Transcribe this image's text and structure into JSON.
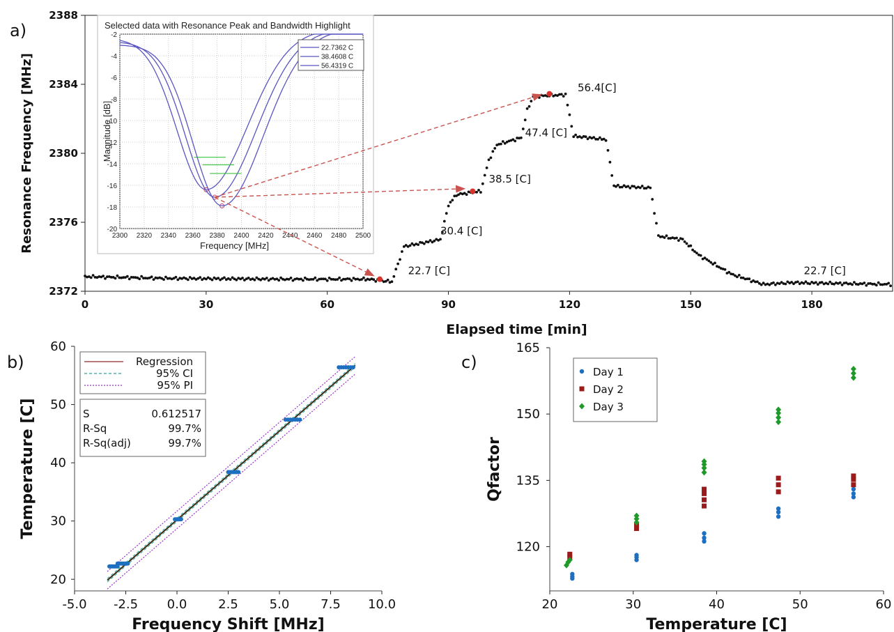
{
  "panels": {
    "a": "a)",
    "b": "b)",
    "c": "c)"
  },
  "chart_data": [
    {
      "id": "a",
      "type": "scatter",
      "xlabel": "Elapsed time [min]",
      "ylabel": "Resonance Frequency [MHz]",
      "xlim": [
        0,
        200
      ],
      "ylim": [
        2372,
        2388
      ],
      "xticks": [
        0,
        30,
        60,
        90,
        120,
        150,
        180
      ],
      "yticks": [
        2372,
        2376,
        2380,
        2384,
        2388
      ],
      "series_profile": [
        [
          0,
          2372.85
        ],
        [
          20,
          2372.75
        ],
        [
          50,
          2372.7
        ],
        [
          70,
          2372.7
        ],
        [
          76,
          2372.55
        ],
        [
          79,
          2374.6
        ],
        [
          88,
          2375.0
        ],
        [
          90,
          2377.0
        ],
        [
          92,
          2377.6
        ],
        [
          98,
          2377.8
        ],
        [
          100,
          2379.6
        ],
        [
          102,
          2380.5
        ],
        [
          108,
          2380.9
        ],
        [
          109.5,
          2382.5
        ],
        [
          111,
          2383.3
        ],
        [
          119,
          2383.4
        ],
        [
          121,
          2381.0
        ],
        [
          129,
          2380.8
        ],
        [
          131,
          2378.1
        ],
        [
          140,
          2378.0
        ],
        [
          142,
          2375.2
        ],
        [
          148,
          2375.0
        ],
        [
          152,
          2374.1
        ],
        [
          160,
          2373.0
        ],
        [
          168,
          2372.4
        ],
        [
          175,
          2372.5
        ],
        [
          200,
          2372.4
        ]
      ],
      "highlights": [
        [
          73,
          2372.7
        ],
        [
          96,
          2377.8
        ],
        [
          115,
          2383.45
        ]
      ],
      "annotations": [
        {
          "text": "22.7 [C]",
          "x": 80,
          "y": 2373.0
        },
        {
          "text": "30.4 [C]",
          "x": 88,
          "y": 2375.3
        },
        {
          "text": "38.5 [C]",
          "x": 100,
          "y": 2378.3
        },
        {
          "text": "47.4 [C]",
          "x": 109,
          "y": 2381.0
        },
        {
          "text": "56.4[C]",
          "x": 122,
          "y": 2383.6
        },
        {
          "text": "22.7 [C]",
          "x": 178,
          "y": 2373.0
        }
      ],
      "inset": {
        "title": "Selected data with Resonance Peak and Bandwidth Highlight",
        "xlabel": "Frequency [MHz]",
        "ylabel": "Magnitude [dB]",
        "xlim": [
          2300,
          2500
        ],
        "ylim": [
          -20,
          -2
        ],
        "xticks": [
          2300,
          2320,
          2340,
          2360,
          2380,
          2400,
          2420,
          2440,
          2460,
          2480,
          2500
        ],
        "yticks": [
          -2,
          -4,
          -6,
          -8,
          -10,
          -12,
          -14,
          -16,
          -18,
          -20
        ],
        "series": [
          {
            "name": "22.7362 C",
            "center": 2371,
            "depth": -16.4,
            "color": "#5a55c0"
          },
          {
            "name": "38.4608 C",
            "center": 2378,
            "depth": -17.1,
            "color": "#5a55c0"
          },
          {
            "name": "56.4319 C",
            "center": 2384,
            "depth": -17.9,
            "color": "#5a55c0"
          }
        ]
      }
    },
    {
      "id": "b",
      "type": "scatter",
      "xlabel": "Frequency Shift [MHz]",
      "ylabel": "Temperature [C]",
      "xlim": [
        -5,
        10
      ],
      "ylim": [
        18,
        60
      ],
      "xticks": [
        -5.0,
        -2.5,
        0.0,
        2.5,
        5.0,
        7.5,
        10.0
      ],
      "yticks": [
        20,
        30,
        40,
        50,
        60
      ],
      "regression": {
        "slope": 3.05,
        "intercept": 30.2
      },
      "clusters": [
        {
          "x0": -3.3,
          "x1": -2.9,
          "y": 22.2
        },
        {
          "x0": -2.9,
          "x1": -2.4,
          "y": 22.7
        },
        {
          "x0": -0.1,
          "x1": 0.2,
          "y": 30.3
        },
        {
          "x0": 2.5,
          "x1": 3.0,
          "y": 38.4
        },
        {
          "x0": 5.3,
          "x1": 6.0,
          "y": 47.4
        },
        {
          "x0": 7.9,
          "x1": 8.6,
          "y": 56.4
        }
      ],
      "legend": {
        "items": [
          "Regression",
          "95% CI",
          "95% PI"
        ],
        "stats": [
          {
            "label": "S",
            "value": "0.612517"
          },
          {
            "label": "R-Sq",
            "value": "99.7%"
          },
          {
            "label": "R-Sq(adj)",
            "value": "99.7%"
          }
        ]
      },
      "colors": {
        "regression": "#8b2a2a",
        "ci": "#2aa2a0",
        "pi": "#9b2fd0",
        "points": "#1f6fc0"
      }
    },
    {
      "id": "c",
      "type": "scatter",
      "xlabel": "Temperature [C]",
      "ylabel": "Qfactor",
      "xlim": [
        20,
        60
      ],
      "ylim": [
        110,
        165
      ],
      "xticks": [
        20,
        30,
        40,
        50,
        60
      ],
      "yticks": [
        120,
        135,
        150,
        165
      ],
      "series": [
        {
          "name": "Day 1",
          "color": "#1f6fc0",
          "marker": "circle",
          "points": [
            [
              22.7,
              113.8
            ],
            [
              22.7,
              113.2
            ],
            [
              22.7,
              112.8
            ],
            [
              30.4,
              117.0
            ],
            [
              30.4,
              117.6
            ],
            [
              30.4,
              118.1
            ],
            [
              38.5,
              121.2
            ],
            [
              38.5,
              122.0
            ],
            [
              38.5,
              123.0
            ],
            [
              47.4,
              126.8
            ],
            [
              47.4,
              127.8
            ],
            [
              47.4,
              128.6
            ],
            [
              56.4,
              131.2
            ],
            [
              56.4,
              132.0
            ],
            [
              56.4,
              133.0
            ]
          ]
        },
        {
          "name": "Day 2",
          "color": "#9b1a1a",
          "marker": "square",
          "points": [
            [
              22.4,
              117.6
            ],
            [
              22.4,
              118.3
            ],
            [
              30.4,
              124.1
            ],
            [
              30.4,
              125.0
            ],
            [
              38.5,
              129.2
            ],
            [
              38.5,
              130.6
            ],
            [
              38.5,
              132.0
            ],
            [
              38.5,
              133.0
            ],
            [
              47.4,
              132.4
            ],
            [
              47.4,
              134.0
            ],
            [
              47.4,
              135.5
            ],
            [
              56.4,
              134.0
            ],
            [
              56.4,
              135.2
            ],
            [
              56.4,
              136.0
            ]
          ]
        },
        {
          "name": "Day 3",
          "color": "#1f9a2a",
          "marker": "diamond",
          "points": [
            [
              22.0,
              115.8
            ],
            [
              22.2,
              116.5
            ],
            [
              22.4,
              117.0
            ],
            [
              30.4,
              125.5
            ],
            [
              30.4,
              126.3
            ],
            [
              30.4,
              127.0
            ],
            [
              38.5,
              136.8
            ],
            [
              38.5,
              137.8
            ],
            [
              38.5,
              138.6
            ],
            [
              38.5,
              139.3
            ],
            [
              47.4,
              148.2
            ],
            [
              47.4,
              149.2
            ],
            [
              47.4,
              150.2
            ],
            [
              47.4,
              151.0
            ],
            [
              56.4,
              158.2
            ],
            [
              56.4,
              159.2
            ],
            [
              56.4,
              160.2
            ]
          ]
        }
      ]
    }
  ]
}
